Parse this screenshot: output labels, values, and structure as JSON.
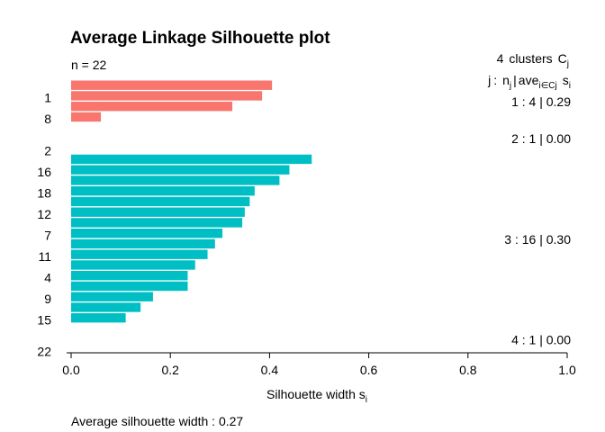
{
  "chart_data": {
    "type": "bar",
    "orientation": "horizontal",
    "title": "Average Linkage Silhouette plot",
    "n_label": "n = 22",
    "header": {
      "clusters_count": "4",
      "clusters_word": "clusters",
      "clusters_symbol": "C",
      "clusters_symbol_sub": "j",
      "col_j": "j",
      "col_n": "n",
      "col_n_sub": "j",
      "col_ave": "ave",
      "col_ave_sub": "i∈Cj",
      "col_s": "s",
      "col_s_sub": "i"
    },
    "xlabel": "Silhouette width s",
    "xlabel_sub": "i",
    "xlim": [
      0,
      1
    ],
    "xticks": [
      "0.0",
      "0.2",
      "0.4",
      "0.6",
      "0.8",
      "1.0"
    ],
    "footer": "Average silhouette width :  0.27",
    "colors": {
      "cluster_1": "#F8766D",
      "cluster_3": "#00BFC4"
    },
    "clusters": [
      {
        "id": 1,
        "summary": "1 :   4  |  0.29",
        "color": "#F8766D",
        "bars": [
          0.405,
          0.385,
          0.325,
          0.06
        ],
        "labels": [
          "1",
          "8"
        ]
      },
      {
        "id": 2,
        "summary": "2 :   1  |  0.00",
        "color": "#F8766D",
        "bars": [
          0.0
        ],
        "labels": [
          "2"
        ]
      },
      {
        "id": 3,
        "summary": "3 :   16  |  0.30",
        "color": "#00BFC4",
        "bars": [
          0.485,
          0.44,
          0.42,
          0.37,
          0.36,
          0.35,
          0.345,
          0.305,
          0.29,
          0.275,
          0.25,
          0.235,
          0.235,
          0.165,
          0.14,
          0.11
        ],
        "labels": [
          "16",
          "18",
          "12",
          "7",
          "11",
          "4",
          "9",
          "15"
        ]
      },
      {
        "id": 4,
        "summary": "4 :   1  |  0.00",
        "color": "#00BFC4",
        "bars": [
          0.0
        ],
        "labels": [
          "22"
        ]
      }
    ]
  }
}
